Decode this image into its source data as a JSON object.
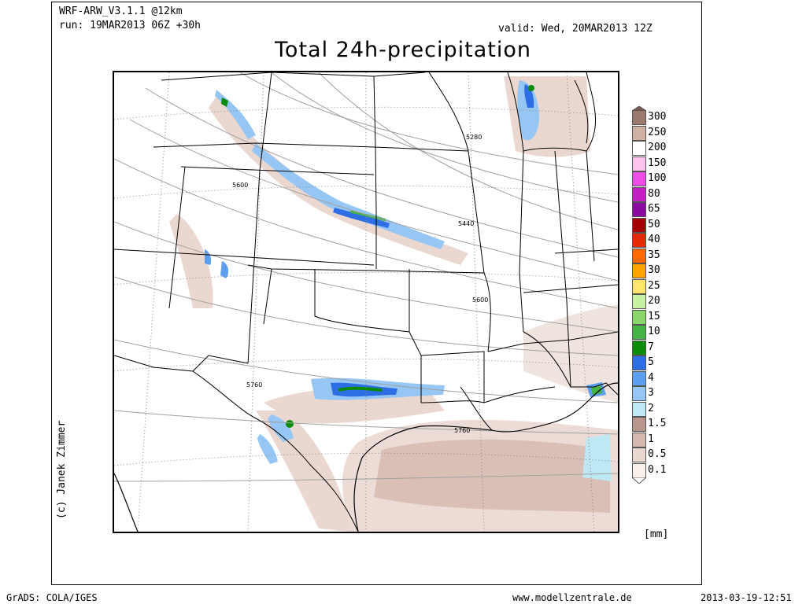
{
  "header": {
    "model": "WRF-ARW_V3.1.1 @12km",
    "run": "run: 19MAR2013 06Z +30h",
    "valid": "valid: Wed, 20MAR2013 12Z",
    "title": "Total 24h-precipitation"
  },
  "credit": "(c) Janek Zimmer",
  "contour_labels": [
    {
      "text": "5280",
      "pos": "upper-mid"
    },
    {
      "text": "5600",
      "pos": "upper-left"
    },
    {
      "text": "5440",
      "pos": "mid-right"
    },
    {
      "text": "5600",
      "pos": "mid-center"
    },
    {
      "text": "5760",
      "pos": "lower-left"
    },
    {
      "text": "5760",
      "pos": "lower-center"
    }
  ],
  "legend": {
    "unit": "[mm]",
    "entries": [
      {
        "label": "300",
        "color": "#9a7a6e"
      },
      {
        "label": "250",
        "color": "#d0b2a4"
      },
      {
        "label": "200",
        "color": "#ffffff"
      },
      {
        "label": "150",
        "color": "#ffc4f0"
      },
      {
        "label": "100",
        "color": "#ee4ee6"
      },
      {
        "label": "80",
        "color": "#c41ec4"
      },
      {
        "label": "65",
        "color": "#8a0aa0"
      },
      {
        "label": "50",
        "color": "#a40000"
      },
      {
        "label": "40",
        "color": "#e42a00"
      },
      {
        "label": "35",
        "color": "#ff6a00"
      },
      {
        "label": "30",
        "color": "#ffa300"
      },
      {
        "label": "25",
        "color": "#ffe46e"
      },
      {
        "label": "20",
        "color": "#c6f2a2"
      },
      {
        "label": "15",
        "color": "#8ad66a"
      },
      {
        "label": "10",
        "color": "#44b444"
      },
      {
        "label": "7",
        "color": "#0a8c0a"
      },
      {
        "label": "5",
        "color": "#2e6ee4"
      },
      {
        "label": "4",
        "color": "#5c9ef0"
      },
      {
        "label": "3",
        "color": "#96c6f4"
      },
      {
        "label": "2",
        "color": "#bde8f4"
      },
      {
        "label": "1.5",
        "color": "#b8968c"
      },
      {
        "label": "1",
        "color": "#d4b8ae"
      },
      {
        "label": "0.5",
        "color": "#ead8d0"
      },
      {
        "label": "0.1",
        "color": "#faf0ec"
      }
    ]
  },
  "footer": {
    "software": "GrADS: COLA/IGES",
    "website": "www.modellzentrale.de",
    "timestamp": "2013-03-19-12:51"
  }
}
